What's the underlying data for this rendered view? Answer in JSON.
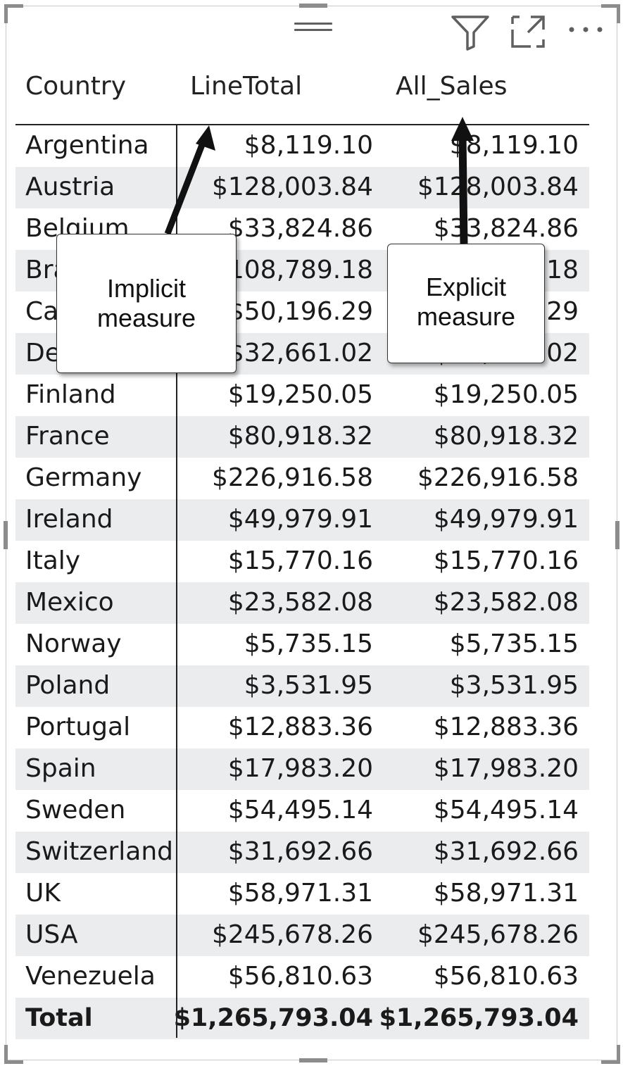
{
  "toolbar": {
    "filter_icon": "filter-icon",
    "focus_icon": "focus-mode-icon",
    "more_icon": "more-options-icon",
    "more_label": "..."
  },
  "table": {
    "headers": [
      "Country",
      "LineTotal",
      "All_Sales"
    ],
    "rows": [
      [
        "Argentina",
        "$8,119.10",
        "$8,119.10"
      ],
      [
        "Austria",
        "$128,003.84",
        "$128,003.84"
      ],
      [
        "Belgium",
        "$33,824.86",
        "$33,824.86"
      ],
      [
        "Brazil",
        "$108,789.18",
        "$108,789.18"
      ],
      [
        "Canada",
        "$50,196.29",
        "$50,196.29"
      ],
      [
        "Denmark",
        "$32,661.02",
        "$32,661.02"
      ],
      [
        "Finland",
        "$19,250.05",
        "$19,250.05"
      ],
      [
        "France",
        "$80,918.32",
        "$80,918.32"
      ],
      [
        "Germany",
        "$226,916.58",
        "$226,916.58"
      ],
      [
        "Ireland",
        "$49,979.91",
        "$49,979.91"
      ],
      [
        "Italy",
        "$15,770.16",
        "$15,770.16"
      ],
      [
        "Mexico",
        "$23,582.08",
        "$23,582.08"
      ],
      [
        "Norway",
        "$5,735.15",
        "$5,735.15"
      ],
      [
        "Poland",
        "$3,531.95",
        "$3,531.95"
      ],
      [
        "Portugal",
        "$12,883.36",
        "$12,883.36"
      ],
      [
        "Spain",
        "$17,983.20",
        "$17,983.20"
      ],
      [
        "Sweden",
        "$54,495.14",
        "$54,495.14"
      ],
      [
        "Switzerland",
        "$31,692.66",
        "$31,692.66"
      ],
      [
        "UK",
        "$58,971.31",
        "$58,971.31"
      ],
      [
        "USA",
        "$245,678.26",
        "$245,678.26"
      ],
      [
        "Venezuela",
        "$56,810.63",
        "$56,810.63"
      ]
    ],
    "total": [
      "Total",
      "$1,265,793.04",
      "$1,265,793.04"
    ]
  },
  "callouts": {
    "implicit": {
      "line1": "Implicit",
      "line2": "measure"
    },
    "explicit": {
      "line1": "Explicit",
      "line2": "measure"
    }
  },
  "colors": {
    "stripe": "#eaecee",
    "icon": "#5f5f5f",
    "arrow": "#111111"
  }
}
